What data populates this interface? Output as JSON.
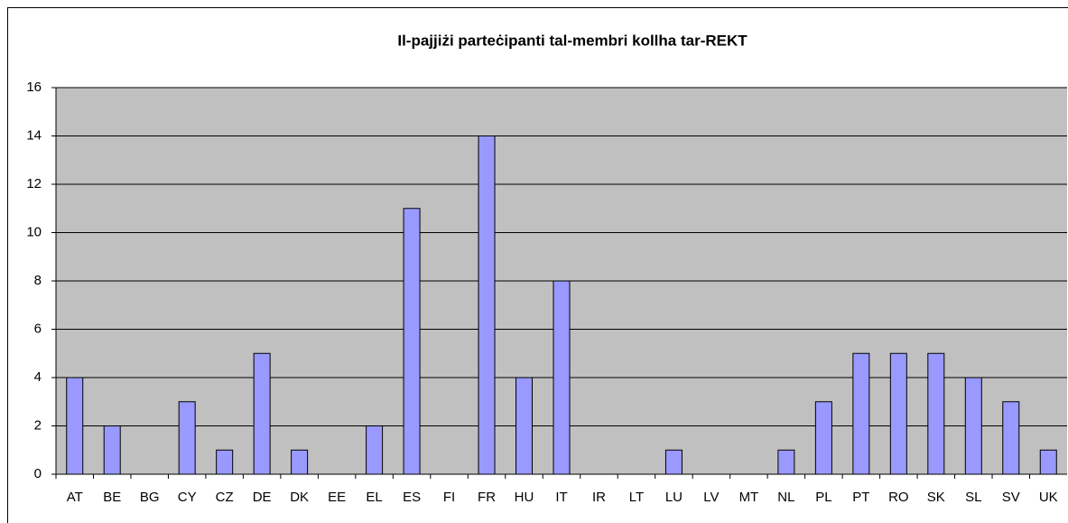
{
  "chart_data": {
    "type": "bar",
    "title": "Il-pajjiżi parteċipanti tal-membri kollha tar-REKT",
    "categories": [
      "AT",
      "BE",
      "BG",
      "CY",
      "CZ",
      "DE",
      "DK",
      "EE",
      "EL",
      "ES",
      "FI",
      "FR",
      "HU",
      "IT",
      "IR",
      "LT",
      "LU",
      "LV",
      "MT",
      "NL",
      "PL",
      "PT",
      "RO",
      "SK",
      "SL",
      "SV",
      "UK"
    ],
    "values": [
      4,
      2,
      0,
      3,
      1,
      5,
      1,
      0,
      2,
      11,
      0,
      14,
      4,
      8,
      0,
      0,
      1,
      0,
      0,
      1,
      3,
      5,
      5,
      5,
      4,
      3,
      1
    ],
    "color": "#9999ff",
    "ylim": [
      0,
      16
    ],
    "yticks": [
      0,
      2,
      4,
      6,
      8,
      10,
      12,
      14,
      16
    ],
    "grid": true
  }
}
